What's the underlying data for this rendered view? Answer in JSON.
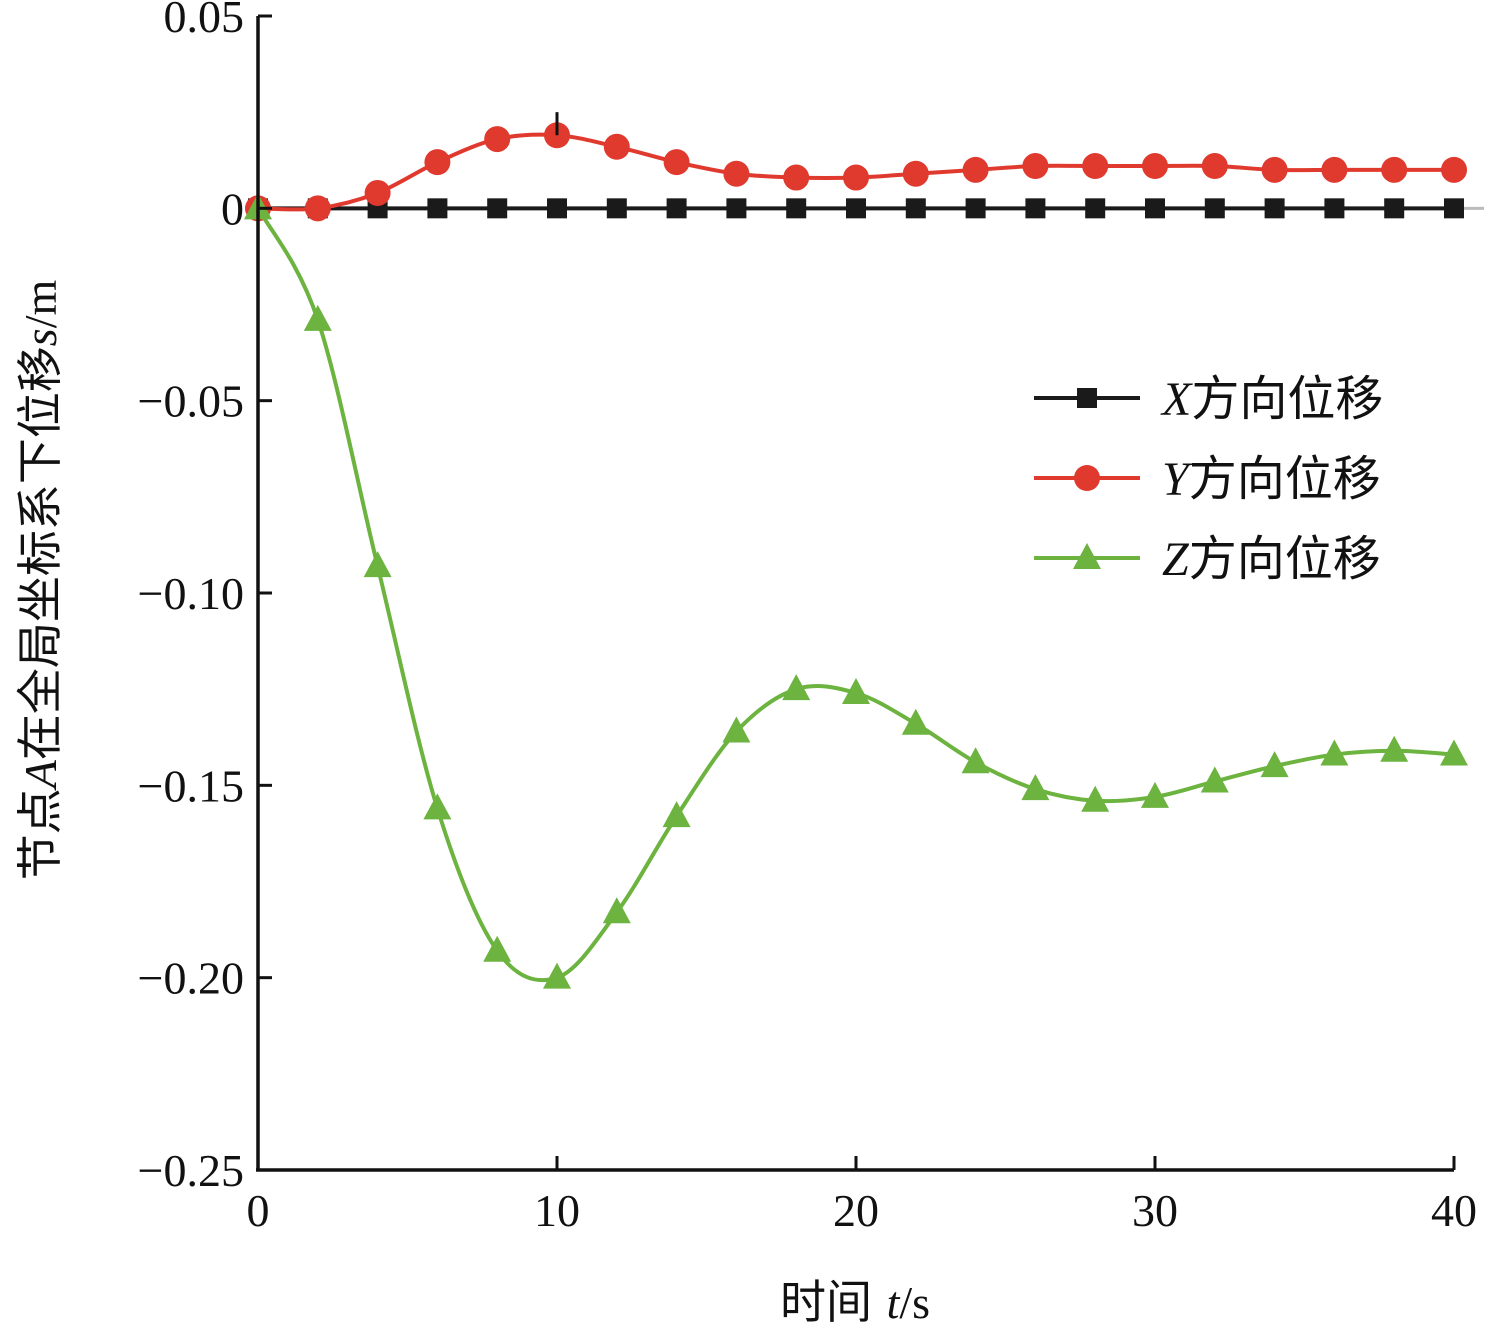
{
  "chart_data": {
    "type": "line",
    "title": "",
    "xlabel": "时间 t/s",
    "xlabel_parts": {
      "prefix": "时间 ",
      "var": "t",
      "unit": "/s"
    },
    "ylabel": "节点A在全局坐标系下位移s/m",
    "ylabel_parts": {
      "prefix": "节点",
      "var": "A",
      "mid": "在全局坐标系下位移",
      "var2": "s",
      "unit": "/m"
    },
    "xlim": [
      0,
      40
    ],
    "ylim": [
      -0.25,
      0.05
    ],
    "xticks": [
      0,
      10,
      20,
      30,
      40
    ],
    "xtick_labels": [
      "0",
      "10",
      "20",
      "30",
      "40"
    ],
    "yticks": [
      0.05,
      0,
      -0.05,
      -0.1,
      -0.15,
      -0.2,
      -0.25
    ],
    "ytick_labels": [
      "0.05",
      "0",
      "−0.05",
      "−0.10",
      "−0.15",
      "−0.20",
      "−0.25"
    ],
    "legend_position": "right-middle",
    "x": [
      0,
      2,
      4,
      6,
      8,
      10,
      12,
      14,
      16,
      18,
      20,
      22,
      24,
      26,
      28,
      30,
      32,
      34,
      36,
      38,
      40
    ],
    "series": [
      {
        "name": "X方向位移",
        "var": "X",
        "suffix": "方向位移",
        "marker": "square",
        "color": "#1a1a1a",
        "values": [
          0,
          0,
          0,
          0,
          0,
          0,
          0,
          0,
          0,
          0,
          0,
          0,
          0,
          0,
          0,
          0,
          0,
          0,
          0,
          0,
          0
        ]
      },
      {
        "name": "Y方向位移",
        "var": "Y",
        "suffix": "方向位移",
        "marker": "circle",
        "color": "#e03a2f",
        "values": [
          0,
          0,
          0.004,
          0.012,
          0.018,
          0.019,
          0.016,
          0.012,
          0.009,
          0.008,
          0.008,
          0.009,
          0.01,
          0.011,
          0.011,
          0.011,
          0.011,
          0.01,
          0.01,
          0.01,
          0.01
        ]
      },
      {
        "name": "Z方向位移",
        "var": "Z",
        "suffix": "方向位移",
        "marker": "triangle",
        "color": "#6cb33f",
        "values": [
          0,
          -0.029,
          -0.093,
          -0.156,
          -0.193,
          -0.2,
          -0.183,
          -0.158,
          -0.136,
          -0.125,
          -0.126,
          -0.134,
          -0.144,
          -0.151,
          -0.154,
          -0.153,
          -0.149,
          -0.145,
          -0.142,
          -0.141,
          -0.142
        ]
      }
    ]
  }
}
